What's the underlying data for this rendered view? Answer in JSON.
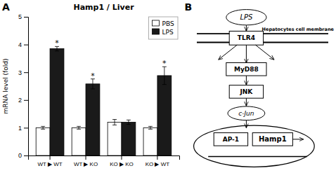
{
  "chart_data": [
    {
      "type": "bar",
      "title": "Hamp1 / Liver",
      "ylabel": "mRNA level (fold)",
      "categories": [
        "WT ▶ WT",
        "WT ▶ KO",
        "KO ▶ KO",
        "KO ▶ WT"
      ],
      "series": [
        {
          "name": "PBS",
          "color": "#ffffff",
          "values": [
            1.0,
            1.0,
            1.2,
            1.0
          ],
          "errors": [
            0.05,
            0.05,
            0.1,
            0.05
          ]
        },
        {
          "name": "LPS",
          "color": "#1a1a1a",
          "values": [
            3.85,
            2.58,
            1.2,
            2.88
          ],
          "errors": [
            0.08,
            0.18,
            0.08,
            0.32
          ],
          "significance": [
            "*",
            "*",
            null,
            "*"
          ]
        }
      ],
      "ylim": [
        0,
        5
      ],
      "yticks": [
        0,
        1,
        2,
        3,
        4,
        5
      ],
      "legend": "upper right",
      "annotations": [
        "A"
      ]
    },
    {
      "type": "diagram",
      "annotations": [
        "B",
        "LPS",
        "TLR4",
        "Hepatocytes cell membrane",
        "MyD88",
        "JNK",
        "c-Jun",
        "AP-1",
        "Hamp1"
      ]
    }
  ]
}
